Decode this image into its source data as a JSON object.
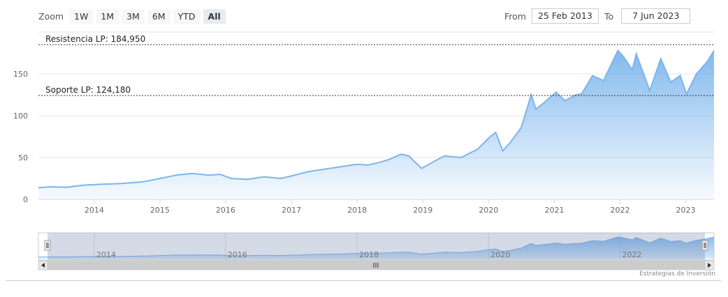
{
  "zoom": {
    "label": "Zoom",
    "buttons": [
      "1W",
      "1M",
      "3M",
      "6M",
      "YTD",
      "All"
    ],
    "active": "All"
  },
  "range": {
    "from_label": "From",
    "from_value": "25 Feb 2013",
    "to_label": "To",
    "to_value": "7 Jun 2023"
  },
  "credits": "Estrategias de Inversión",
  "colors": {
    "line": "#7cb5ec",
    "fill_top": "#7cb5ec",
    "grid": "#e6e6e6",
    "plotline": "#333333"
  },
  "chart_data": {
    "type": "area",
    "x_axis": {
      "min": "2013-02-25",
      "max": "2023-06-07",
      "tick_labels": [
        "2014",
        "2015",
        "2016",
        "2017",
        "2018",
        "2019",
        "2020",
        "2021",
        "2022",
        "2023"
      ]
    },
    "y_axis": {
      "min": 0,
      "max": 200,
      "tick_labels": [
        "0",
        "50",
        "100",
        "150"
      ]
    },
    "plot_lines": [
      {
        "label": "Resistencia LP: 184,950",
        "value": 184.95
      },
      {
        "label": "Soporte LP: 124,180",
        "value": 124.18
      }
    ],
    "navigator_labels": [
      "2014",
      "2016",
      "2018",
      "2020",
      "2022"
    ],
    "series": [
      {
        "points": [
          [
            "2013-02-25",
            14
          ],
          [
            "2013-05-01",
            15
          ],
          [
            "2013-08-01",
            14.5
          ],
          [
            "2013-11-01",
            17
          ],
          [
            "2014-02-01",
            18
          ],
          [
            "2014-06-01",
            19
          ],
          [
            "2014-10-01",
            21
          ],
          [
            "2015-01-01",
            25
          ],
          [
            "2015-04-01",
            29
          ],
          [
            "2015-07-01",
            31
          ],
          [
            "2015-10-01",
            29
          ],
          [
            "2015-12-01",
            30
          ],
          [
            "2016-02-01",
            25
          ],
          [
            "2016-05-01",
            24
          ],
          [
            "2016-08-01",
            27
          ],
          [
            "2016-11-01",
            25
          ],
          [
            "2017-01-01",
            28
          ],
          [
            "2017-04-01",
            33
          ],
          [
            "2017-07-01",
            36
          ],
          [
            "2017-10-01",
            39
          ],
          [
            "2018-01-01",
            42
          ],
          [
            "2018-03-01",
            41
          ],
          [
            "2018-05-01",
            44
          ],
          [
            "2018-07-01",
            48
          ],
          [
            "2018-09-01",
            54
          ],
          [
            "2018-10-15",
            52
          ],
          [
            "2018-12-25",
            37
          ],
          [
            "2019-03-01",
            45
          ],
          [
            "2019-05-01",
            52
          ],
          [
            "2019-08-01",
            50
          ],
          [
            "2019-11-01",
            60
          ],
          [
            "2020-01-10",
            75
          ],
          [
            "2020-02-10",
            80
          ],
          [
            "2020-03-20",
            58
          ],
          [
            "2020-05-01",
            68
          ],
          [
            "2020-07-01",
            86
          ],
          [
            "2020-08-25",
            125
          ],
          [
            "2020-09-20",
            108
          ],
          [
            "2020-11-01",
            115
          ],
          [
            "2021-01-10",
            128
          ],
          [
            "2021-03-01",
            118
          ],
          [
            "2021-05-01",
            125
          ],
          [
            "2021-06-01",
            126
          ],
          [
            "2021-08-01",
            148
          ],
          [
            "2021-10-01",
            142
          ],
          [
            "2021-12-20",
            178
          ],
          [
            "2022-01-15",
            172
          ],
          [
            "2022-03-10",
            155
          ],
          [
            "2022-04-01",
            174
          ],
          [
            "2022-06-15",
            130
          ],
          [
            "2022-08-15",
            168
          ],
          [
            "2022-10-10",
            140
          ],
          [
            "2022-12-01",
            148
          ],
          [
            "2023-01-05",
            126
          ],
          [
            "2023-03-01",
            150
          ],
          [
            "2023-05-01",
            165
          ],
          [
            "2023-06-07",
            178
          ]
        ]
      }
    ]
  }
}
